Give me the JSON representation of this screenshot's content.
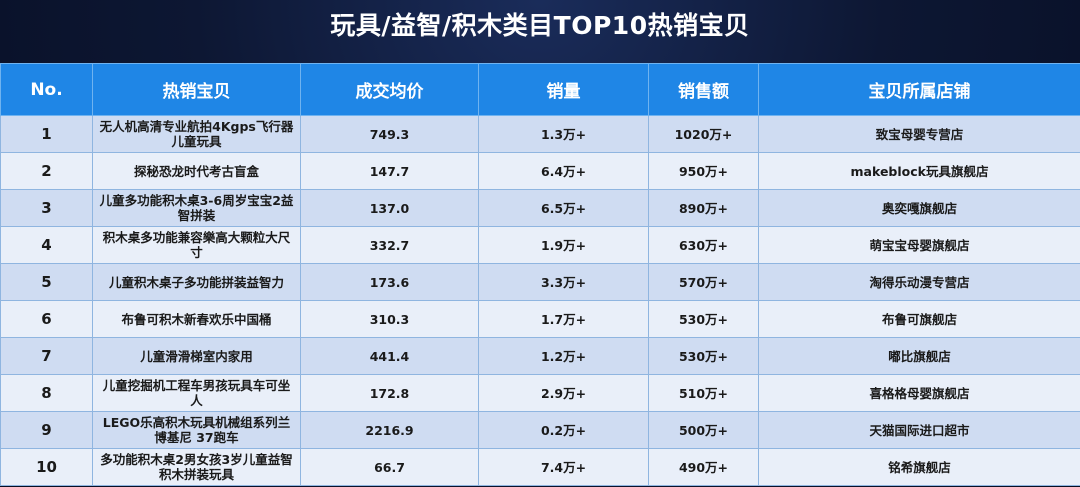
{
  "title": "玩具/益智/积木类目TOP10热销宝贝",
  "columns": {
    "no": "No.",
    "item": "热销宝贝",
    "price": "成交均价",
    "volume": "销量",
    "sales": "销售额",
    "store": "宝贝所属店铺"
  },
  "rows": [
    {
      "no": "1",
      "item": "无人机高清专业航拍4Kgps飞行器儿童玩具",
      "price": "749.3",
      "volume": "1.3万+",
      "sales": "1020万+",
      "store": "致宝母婴专营店"
    },
    {
      "no": "2",
      "item": "探秘恐龙时代考古盲盒",
      "price": "147.7",
      "volume": "6.4万+",
      "sales": "950万+",
      "store": "makeblock玩具旗舰店"
    },
    {
      "no": "3",
      "item": "儿童多功能积木桌3-6周岁宝宝2益智拼装",
      "price": "137.0",
      "volume": "6.5万+",
      "sales": "890万+",
      "store": "奥奕嘎旗舰店"
    },
    {
      "no": "4",
      "item": "积木桌多功能兼容樂高大颗粒大尺寸",
      "price": "332.7",
      "volume": "1.9万+",
      "sales": "630万+",
      "store": "萌宝宝母婴旗舰店"
    },
    {
      "no": "5",
      "item": "儿童积木桌子多功能拼装益智力",
      "price": "173.6",
      "volume": "3.3万+",
      "sales": "570万+",
      "store": "淘得乐动漫专营店"
    },
    {
      "no": "6",
      "item": "布鲁可积木新春欢乐中国桶",
      "price": "310.3",
      "volume": "1.7万+",
      "sales": "530万+",
      "store": "布鲁可旗舰店"
    },
    {
      "no": "7",
      "item": "儿童滑滑梯室内家用",
      "price": "441.4",
      "volume": "1.2万+",
      "sales": "530万+",
      "store": "嘟比旗舰店"
    },
    {
      "no": "8",
      "item": "儿童挖掘机工程车男孩玩具车可坐人",
      "price": "172.8",
      "volume": "2.9万+",
      "sales": "510万+",
      "store": "喜格格母婴旗舰店"
    },
    {
      "no": "9",
      "item": "LEGO乐高积木玩具机械组系列兰博基尼 37跑车",
      "price": "2216.9",
      "volume": "0.2万+",
      "sales": "500万+",
      "store": "天猫国际进口超市"
    },
    {
      "no": "10",
      "item": "多功能积木桌2男女孩3岁儿童益智积木拼装玩具",
      "price": "66.7",
      "volume": "7.4万+",
      "sales": "490万+",
      "store": "铭希旗舰店"
    }
  ]
}
